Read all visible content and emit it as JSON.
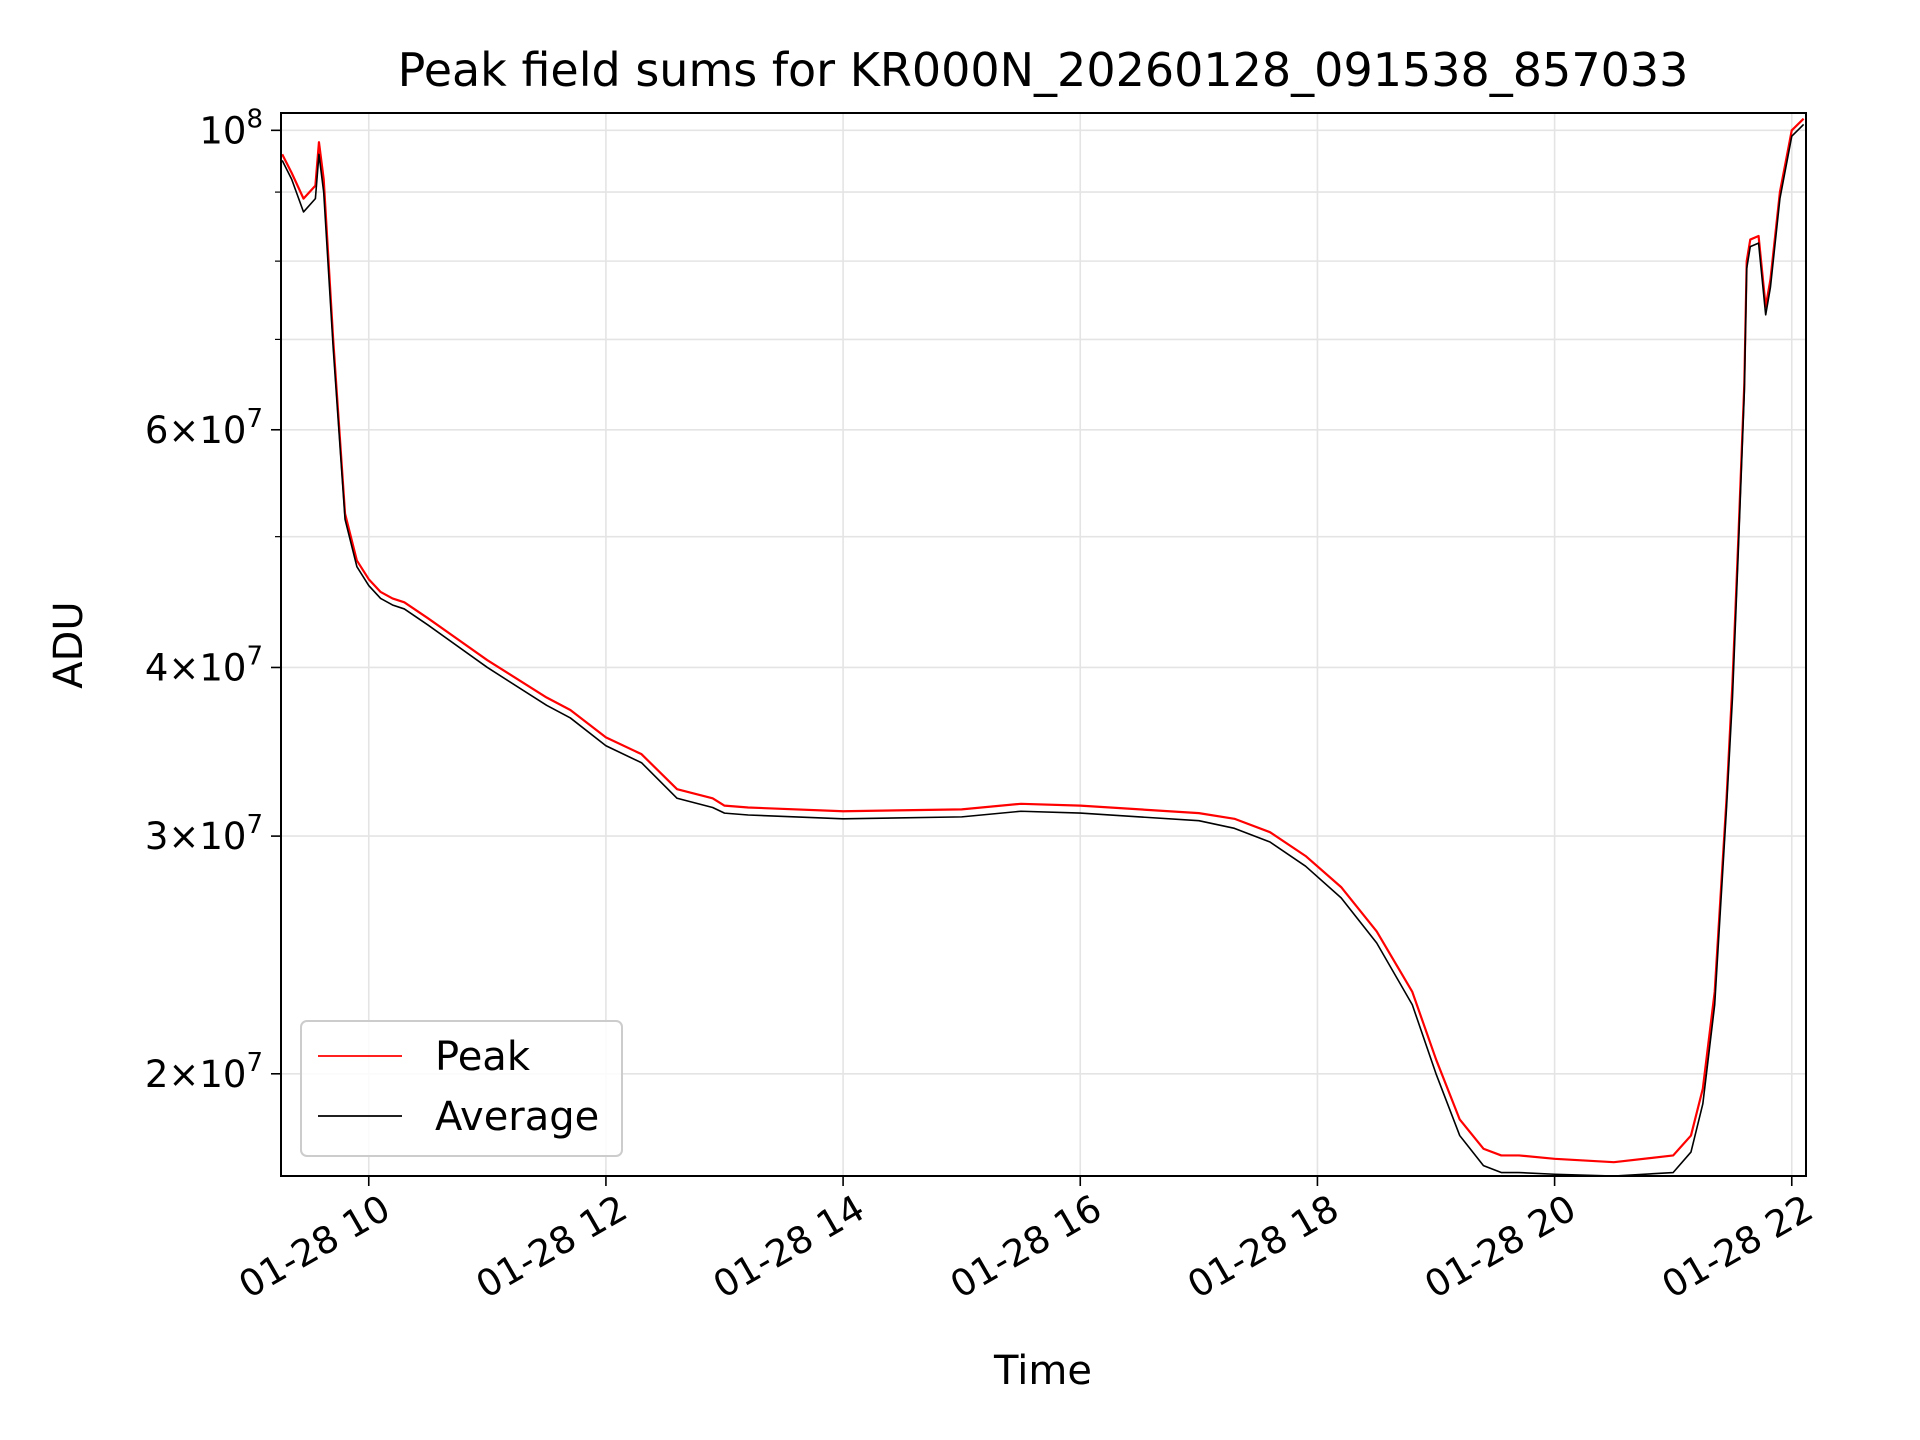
{
  "chart_data": {
    "type": "line",
    "title": "Peak field sums for KR000N_20260128_091538_857033",
    "xlabel": "Time",
    "ylabel": "ADU",
    "yscale": "log",
    "grid": true,
    "legend_position": "lower-left",
    "xlim_hours": [
      9.26,
      22.12
    ],
    "ylim": [
      16800000,
      103000000
    ],
    "x_ticks": [
      {
        "value": 10,
        "label": "01-28 10"
      },
      {
        "value": 12,
        "label": "01-28 12"
      },
      {
        "value": 14,
        "label": "01-28 14"
      },
      {
        "value": 16,
        "label": "01-28 16"
      },
      {
        "value": 18,
        "label": "01-28 18"
      },
      {
        "value": 20,
        "label": "01-28 20"
      },
      {
        "value": 22,
        "label": "01-28 22"
      }
    ],
    "y_ticks": [
      {
        "value": 20000000,
        "mantissa": "2",
        "base": "10",
        "exponent": "7"
      },
      {
        "value": 30000000,
        "mantissa": "3",
        "base": "10",
        "exponent": "7"
      },
      {
        "value": 40000000,
        "mantissa": "4",
        "base": "10",
        "exponent": "7"
      },
      {
        "value": 60000000,
        "mantissa": "6",
        "base": "10",
        "exponent": "7"
      },
      {
        "value": 100000000,
        "mantissa": "",
        "base": "10",
        "exponent": "8"
      }
    ],
    "y_minor_ticks": [
      50000000,
      70000000,
      80000000,
      90000000
    ],
    "series": [
      {
        "name": "Peak",
        "color": "#ff0000",
        "x": [
          9.27,
          9.35,
          9.45,
          9.55,
          9.58,
          9.62,
          9.7,
          9.8,
          9.9,
          10.0,
          10.1,
          10.2,
          10.3,
          10.5,
          11.0,
          11.5,
          11.7,
          12.0,
          12.3,
          12.6,
          12.9,
          13.0,
          13.2,
          14.0,
          15.0,
          15.5,
          16.0,
          17.0,
          17.3,
          17.6,
          17.9,
          18.2,
          18.5,
          18.8,
          19.0,
          19.2,
          19.4,
          19.55,
          19.7,
          20.0,
          20.5,
          21.0,
          21.15,
          21.25,
          21.35,
          21.45,
          21.5,
          21.55,
          21.6,
          21.62,
          21.65,
          21.72,
          21.78,
          21.82,
          21.9,
          22.0,
          22.1
        ],
        "y": [
          96000000,
          93000000,
          89000000,
          91000000,
          98000000,
          92000000,
          70000000,
          52000000,
          48000000,
          46500000,
          45500000,
          45000000,
          44700000,
          43500000,
          40500000,
          38000000,
          37200000,
          35500000,
          34500000,
          32500000,
          32000000,
          31600000,
          31500000,
          31300000,
          31400000,
          31700000,
          31600000,
          31200000,
          30900000,
          30200000,
          29000000,
          27500000,
          25500000,
          23000000,
          20500000,
          18500000,
          17600000,
          17400000,
          17400000,
          17300000,
          17200000,
          17400000,
          18000000,
          19500000,
          23000000,
          32000000,
          39000000,
          50000000,
          65000000,
          80000000,
          83000000,
          83500000,
          74000000,
          77500000,
          90000000,
          100000000,
          102000000
        ]
      },
      {
        "name": "Average",
        "color": "#000000",
        "x": [
          9.27,
          9.35,
          9.45,
          9.55,
          9.58,
          9.62,
          9.7,
          9.8,
          9.9,
          10.0,
          10.1,
          10.2,
          10.3,
          10.5,
          11.0,
          11.5,
          11.7,
          12.0,
          12.3,
          12.6,
          12.9,
          13.0,
          13.2,
          14.0,
          15.0,
          15.5,
          16.0,
          17.0,
          17.3,
          17.6,
          17.9,
          18.2,
          18.5,
          18.8,
          19.0,
          19.2,
          19.4,
          19.55,
          19.7,
          20.0,
          20.5,
          21.0,
          21.15,
          21.25,
          21.35,
          21.45,
          21.5,
          21.55,
          21.6,
          21.62,
          21.65,
          21.72,
          21.78,
          21.82,
          21.9,
          22.0,
          22.1
        ],
        "y": [
          95000000,
          92000000,
          87000000,
          89000000,
          96000000,
          90000000,
          69000000,
          51500000,
          47500000,
          46000000,
          45000000,
          44500000,
          44200000,
          43000000,
          40000000,
          37500000,
          36700000,
          35000000,
          34000000,
          32000000,
          31500000,
          31200000,
          31100000,
          30900000,
          31000000,
          31300000,
          31200000,
          30800000,
          30400000,
          29700000,
          28500000,
          27000000,
          25000000,
          22500000,
          20000000,
          18000000,
          17100000,
          16900000,
          16900000,
          16850000,
          16800000,
          16900000,
          17500000,
          19000000,
          22500000,
          31500000,
          38000000,
          49000000,
          64000000,
          79000000,
          82000000,
          82500000,
          73000000,
          76500000,
          89000000,
          99000000,
          101000000
        ]
      }
    ]
  }
}
